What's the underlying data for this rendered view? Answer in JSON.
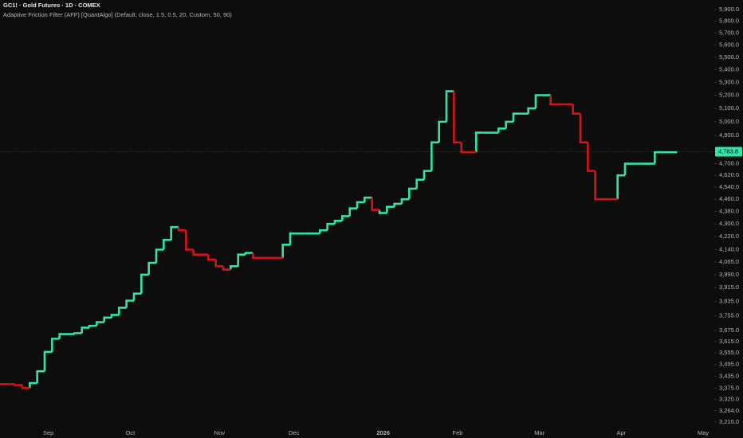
{
  "chart_data": {
    "type": "step",
    "title": "GC1! · Gold Futures · 1D · COMEX",
    "subtitle": "Adaptive Friction Filter (AFF) [QuantAlgo] (Default, close, 1.5, 0.5, 20, Custom, 50, 90)",
    "categories": [
      null,
      null,
      null,
      null,
      null,
      null,
      "Sep",
      null,
      null,
      null,
      null,
      null,
      null,
      null,
      null,
      null,
      null,
      "Oct",
      null,
      null,
      null,
      null,
      null,
      null,
      null,
      null,
      null,
      null,
      null,
      "Nov",
      null,
      null,
      null,
      null,
      null,
      null,
      null,
      null,
      null,
      "Dec",
      null,
      null,
      null,
      null,
      null,
      null,
      null,
      null,
      null,
      null,
      null,
      "2026",
      null,
      null,
      null,
      null,
      null,
      null,
      null,
      null,
      null,
      "Feb",
      null,
      null,
      null,
      null,
      null,
      null,
      null,
      null,
      null,
      null,
      "Mar",
      null,
      null,
      null,
      null,
      null,
      null,
      null,
      null,
      null,
      null,
      "Apr",
      null,
      null,
      null,
      null,
      null,
      null,
      null,
      null,
      null,
      null,
      "May",
      null
    ],
    "series": [
      {
        "color": "#2fe6a6",
        "values": [
          null,
          null,
          null,
          null,
          3400,
          3460,
          3560,
          3630,
          3655,
          3655,
          3660,
          3690,
          3700,
          3720,
          3745,
          3760,
          3800,
          3840,
          3880,
          3990,
          4060,
          4140,
          4200,
          4280,
          null,
          null,
          null,
          null,
          null,
          null,
          null,
          4040,
          4110,
          4120,
          null,
          null,
          null,
          null,
          4170,
          4240,
          4240,
          4240,
          4240,
          4260,
          4300,
          4320,
          4350,
          4400,
          4440,
          4470,
          null,
          4370,
          4410,
          4430,
          4460,
          4530,
          4590,
          4650,
          4850,
          5000,
          5230,
          null,
          null,
          null,
          4920,
          4920,
          4920,
          4950,
          5000,
          5060,
          5060,
          5100,
          5200,
          5200,
          null,
          null,
          null,
          null,
          null,
          null,
          null,
          null,
          null,
          4620,
          4700,
          4700,
          4700,
          4700,
          4780,
          4780,
          4780,
          null,
          null,
          null,
          null,
          null
        ]
      },
      {
        "color": "#d4121c",
        "values": [
          3395,
          3395,
          3390,
          3375,
          null,
          null,
          null,
          null,
          null,
          null,
          null,
          null,
          null,
          null,
          null,
          null,
          null,
          null,
          null,
          null,
          null,
          null,
          null,
          null,
          4260,
          4140,
          4110,
          4110,
          4080,
          4040,
          4020,
          null,
          null,
          null,
          4090,
          4090,
          4090,
          4090,
          null,
          null,
          null,
          null,
          null,
          null,
          null,
          null,
          null,
          null,
          null,
          null,
          4390,
          null,
          null,
          null,
          null,
          null,
          null,
          null,
          null,
          null,
          null,
          4850,
          4780,
          4780,
          null,
          null,
          null,
          null,
          null,
          null,
          null,
          null,
          null,
          null,
          5130,
          5130,
          5130,
          5060,
          4850,
          4650,
          4460,
          4460,
          4460,
          null,
          null,
          null,
          null,
          null,
          null,
          null,
          null,
          null,
          null,
          null,
          null,
          null
        ]
      }
    ],
    "ylim": [
      3180,
      5984
    ],
    "log_scale": true,
    "grid": false,
    "yticks": [
      {
        "value": 5900,
        "label": "5,900.0"
      },
      {
        "value": 5800,
        "label": "5,800.0"
      },
      {
        "value": 5700,
        "label": "5,700.0"
      },
      {
        "value": 5600,
        "label": "5,600.0"
      },
      {
        "value": 5500,
        "label": "5,500.0"
      },
      {
        "value": 5400,
        "label": "5,400.0"
      },
      {
        "value": 5300,
        "label": "5,300.0"
      },
      {
        "value": 5200,
        "label": "5,200.0"
      },
      {
        "value": 5100,
        "label": "5,100.0"
      },
      {
        "value": 5000,
        "label": "5,000.0"
      },
      {
        "value": 4900,
        "label": "4,900.0"
      },
      {
        "value": 4700,
        "label": "4,700.0"
      },
      {
        "value": 4620,
        "label": "4,620.0"
      },
      {
        "value": 4540,
        "label": "4,540.0"
      },
      {
        "value": 4460,
        "label": "4,460.0"
      },
      {
        "value": 4380,
        "label": "4,380.0"
      },
      {
        "value": 4300,
        "label": "4,300.0"
      },
      {
        "value": 4220,
        "label": "4,220.0"
      },
      {
        "value": 4140,
        "label": "4,140.0"
      },
      {
        "value": 4065,
        "label": "4,065.0"
      },
      {
        "value": 3990,
        "label": "3,990.0"
      },
      {
        "value": 3915,
        "label": "3,915.0"
      },
      {
        "value": 3835,
        "label": "3,835.0"
      },
      {
        "value": 3755,
        "label": "3,755.0"
      },
      {
        "value": 3675,
        "label": "3,675.0"
      },
      {
        "value": 3615,
        "label": "3,615.0"
      },
      {
        "value": 3555,
        "label": "3,555.0"
      },
      {
        "value": 3495,
        "label": "3,495.0"
      },
      {
        "value": 3435,
        "label": "3,435.0"
      },
      {
        "value": 3375,
        "label": "3,375.0"
      },
      {
        "value": 3320,
        "label": "3,320.0"
      },
      {
        "value": 3264,
        "label": "3,264.0"
      },
      {
        "value": 3210,
        "label": "3,210.0"
      }
    ],
    "last_price": {
      "value": 4783.8,
      "label": "4,783.8"
    },
    "last_price_color": "#2fe6a6"
  }
}
